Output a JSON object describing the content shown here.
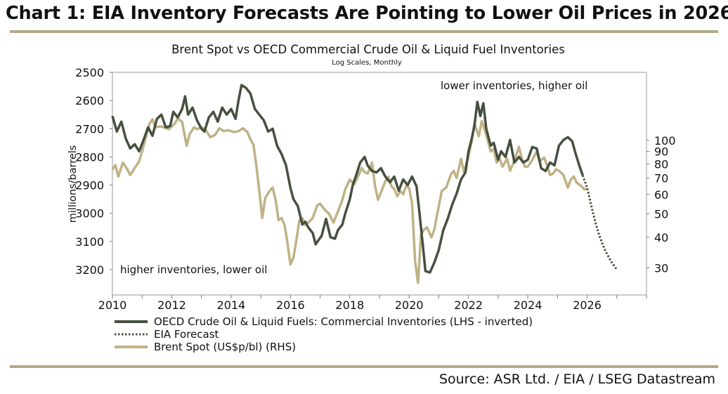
{
  "headline": "Chart 1: EIA Inventory Forecasts Are Pointing to Lower Oil Prices in 2026",
  "source": "Source: ASR Ltd. / EIA / LSEG Datastream",
  "chart_data": {
    "type": "line",
    "title": "Brent Spot  vs OECD Commercial Crude Oil & Liquid Fuel Inventories",
    "subtitle": "Log Scales, Monthly",
    "ylabel": "millions/barrels",
    "xlim": [
      2010,
      2028
    ],
    "x_ticks": [
      "2010",
      "2012",
      "2014",
      "2016",
      "2018",
      "2020",
      "2022",
      "2024",
      "2026"
    ],
    "ylim_left": [
      2500,
      3240
    ],
    "left_inverted": true,
    "left_ticks": [
      "2500",
      "2600",
      "2700",
      "2800",
      "2900",
      "3000",
      "3100",
      "3200"
    ],
    "right_log_scale": true,
    "ylim_right": [
      26.5,
      190
    ],
    "right_ticks": [
      "100",
      "90",
      "80",
      "70",
      "60",
      "50",
      "40",
      "30"
    ],
    "annotations": [
      "lower inventories, higher oil",
      "higher inventories, lower oil"
    ],
    "legend_position": "bottom-left",
    "colors": {
      "inventories": "#46503f",
      "forecast": "#46503f",
      "brent": "#bfb286",
      "rule": "#b5a985"
    },
    "series": [
      {
        "name": "OECD Crude Oil & Liquid Fuels: Commercial Inventories (LHS - inverted)",
        "axis": "left",
        "style": "solid",
        "points": [
          [
            2010.0,
            2655
          ],
          [
            2010.15,
            2710
          ],
          [
            2010.3,
            2675
          ],
          [
            2010.45,
            2735
          ],
          [
            2010.6,
            2770
          ],
          [
            2010.75,
            2755
          ],
          [
            2010.9,
            2780
          ],
          [
            2011.05,
            2740
          ],
          [
            2011.2,
            2695
          ],
          [
            2011.35,
            2725
          ],
          [
            2011.5,
            2665
          ],
          [
            2011.65,
            2650
          ],
          [
            2011.8,
            2695
          ],
          [
            2011.95,
            2690
          ],
          [
            2012.05,
            2640
          ],
          [
            2012.2,
            2660
          ],
          [
            2012.35,
            2630
          ],
          [
            2012.45,
            2585
          ],
          [
            2012.55,
            2650
          ],
          [
            2012.7,
            2625
          ],
          [
            2012.85,
            2670
          ],
          [
            2013.0,
            2700
          ],
          [
            2013.1,
            2710
          ],
          [
            2013.25,
            2660
          ],
          [
            2013.4,
            2640
          ],
          [
            2013.55,
            2675
          ],
          [
            2013.7,
            2625
          ],
          [
            2013.85,
            2650
          ],
          [
            2014.0,
            2630
          ],
          [
            2014.15,
            2665
          ],
          [
            2014.25,
            2600
          ],
          [
            2014.35,
            2545
          ],
          [
            2014.5,
            2555
          ],
          [
            2014.65,
            2575
          ],
          [
            2014.8,
            2630
          ],
          [
            2014.95,
            2650
          ],
          [
            2015.1,
            2670
          ],
          [
            2015.25,
            2710
          ],
          [
            2015.4,
            2700
          ],
          [
            2015.55,
            2760
          ],
          [
            2015.7,
            2790
          ],
          [
            2015.85,
            2830
          ],
          [
            2016.0,
            2910
          ],
          [
            2016.1,
            2950
          ],
          [
            2016.25,
            2975
          ],
          [
            2016.4,
            3040
          ],
          [
            2016.5,
            3030
          ],
          [
            2016.6,
            3050
          ],
          [
            2016.75,
            3070
          ],
          [
            2016.85,
            3110
          ],
          [
            2016.95,
            3095
          ],
          [
            2017.05,
            3080
          ],
          [
            2017.2,
            3020
          ],
          [
            2017.35,
            3085
          ],
          [
            2017.5,
            3090
          ],
          [
            2017.6,
            3060
          ],
          [
            2017.75,
            3040
          ],
          [
            2017.85,
            3000
          ],
          [
            2018.0,
            2950
          ],
          [
            2018.1,
            2900
          ],
          [
            2018.2,
            2870
          ],
          [
            2018.35,
            2820
          ],
          [
            2018.5,
            2800
          ],
          [
            2018.6,
            2830
          ],
          [
            2018.75,
            2850
          ],
          [
            2018.9,
            2855
          ],
          [
            2019.05,
            2840
          ],
          [
            2019.2,
            2870
          ],
          [
            2019.35,
            2890
          ],
          [
            2019.5,
            2870
          ],
          [
            2019.65,
            2920
          ],
          [
            2019.8,
            2880
          ],
          [
            2019.95,
            2900
          ],
          [
            2020.1,
            2870
          ],
          [
            2020.25,
            2905
          ],
          [
            2020.35,
            3000
          ],
          [
            2020.45,
            3100
          ],
          [
            2020.55,
            3205
          ],
          [
            2020.7,
            3210
          ],
          [
            2020.85,
            3175
          ],
          [
            2021.0,
            3130
          ],
          [
            2021.15,
            3060
          ],
          [
            2021.3,
            3020
          ],
          [
            2021.45,
            2970
          ],
          [
            2021.6,
            2930
          ],
          [
            2021.75,
            2880
          ],
          [
            2021.9,
            2855
          ],
          [
            2022.0,
            2780
          ],
          [
            2022.1,
            2740
          ],
          [
            2022.2,
            2690
          ],
          [
            2022.3,
            2605
          ],
          [
            2022.4,
            2655
          ],
          [
            2022.5,
            2610
          ],
          [
            2022.6,
            2700
          ],
          [
            2022.75,
            2760
          ],
          [
            2022.85,
            2750
          ],
          [
            2023.0,
            2810
          ],
          [
            2023.1,
            2780
          ],
          [
            2023.25,
            2800
          ],
          [
            2023.4,
            2740
          ],
          [
            2023.55,
            2820
          ],
          [
            2023.7,
            2800
          ],
          [
            2023.85,
            2820
          ],
          [
            2024.0,
            2810
          ],
          [
            2024.15,
            2765
          ],
          [
            2024.3,
            2770
          ],
          [
            2024.45,
            2840
          ],
          [
            2024.6,
            2850
          ],
          [
            2024.75,
            2820
          ],
          [
            2024.9,
            2830
          ],
          [
            2025.05,
            2760
          ],
          [
            2025.2,
            2740
          ],
          [
            2025.35,
            2730
          ],
          [
            2025.5,
            2745
          ],
          [
            2025.6,
            2785
          ],
          [
            2025.75,
            2835
          ],
          [
            2025.85,
            2865
          ]
        ]
      },
      {
        "name": "EIA Forecast",
        "axis": "left",
        "style": "dotted",
        "points": [
          [
            2025.85,
            2865
          ],
          [
            2026.0,
            2910
          ],
          [
            2026.1,
            2955
          ],
          [
            2026.2,
            3000
          ],
          [
            2026.3,
            3040
          ],
          [
            2026.4,
            3075
          ],
          [
            2026.5,
            3105
          ],
          [
            2026.6,
            3130
          ],
          [
            2026.7,
            3150
          ],
          [
            2026.8,
            3170
          ],
          [
            2026.9,
            3185
          ],
          [
            2027.0,
            3200
          ]
        ]
      },
      {
        "name": "Brent Spot (US$p/bl) (RHS)",
        "axis": "right",
        "points": [
          [
            2010.0,
            76
          ],
          [
            2010.1,
            79
          ],
          [
            2010.2,
            71
          ],
          [
            2010.35,
            81
          ],
          [
            2010.5,
            76
          ],
          [
            2010.6,
            72
          ],
          [
            2010.75,
            77
          ],
          [
            2010.9,
            82
          ],
          [
            2011.0,
            90
          ],
          [
            2011.1,
            100
          ],
          [
            2011.25,
            117
          ],
          [
            2011.35,
            122
          ],
          [
            2011.45,
            113
          ],
          [
            2011.6,
            114
          ],
          [
            2011.75,
            113
          ],
          [
            2011.9,
            111
          ],
          [
            2012.1,
            117
          ],
          [
            2012.2,
            123
          ],
          [
            2012.35,
            119
          ],
          [
            2012.5,
            95
          ],
          [
            2012.6,
            106
          ],
          [
            2012.75,
            113
          ],
          [
            2012.85,
            111
          ],
          [
            2013.0,
            113
          ],
          [
            2013.15,
            110
          ],
          [
            2013.3,
            103
          ],
          [
            2013.45,
            105
          ],
          [
            2013.6,
            112
          ],
          [
            2013.75,
            109
          ],
          [
            2013.9,
            110
          ],
          [
            2014.1,
            108
          ],
          [
            2014.25,
            109
          ],
          [
            2014.4,
            112
          ],
          [
            2014.55,
            108
          ],
          [
            2014.65,
            101
          ],
          [
            2014.75,
            96
          ],
          [
            2014.85,
            79
          ],
          [
            2014.95,
            62
          ],
          [
            2015.05,
            48
          ],
          [
            2015.15,
            58
          ],
          [
            2015.3,
            62
          ],
          [
            2015.4,
            64
          ],
          [
            2015.5,
            57
          ],
          [
            2015.6,
            47
          ],
          [
            2015.7,
            48
          ],
          [
            2015.8,
            45
          ],
          [
            2015.9,
            38
          ],
          [
            2016.0,
            31
          ],
          [
            2016.1,
            33
          ],
          [
            2016.2,
            39
          ],
          [
            2016.3,
            47
          ],
          [
            2016.4,
            48
          ],
          [
            2016.5,
            45
          ],
          [
            2016.6,
            46
          ],
          [
            2016.75,
            48
          ],
          [
            2016.9,
            54
          ],
          [
            2017.0,
            55
          ],
          [
            2017.15,
            52
          ],
          [
            2017.3,
            50
          ],
          [
            2017.45,
            46
          ],
          [
            2017.6,
            51
          ],
          [
            2017.75,
            57
          ],
          [
            2017.85,
            63
          ],
          [
            2018.0,
            69
          ],
          [
            2018.15,
            66
          ],
          [
            2018.3,
            72
          ],
          [
            2018.4,
            77
          ],
          [
            2018.5,
            74
          ],
          [
            2018.6,
            73
          ],
          [
            2018.75,
            81
          ],
          [
            2018.85,
            65
          ],
          [
            2018.95,
            57
          ],
          [
            2019.05,
            61
          ],
          [
            2019.2,
            68
          ],
          [
            2019.3,
            71
          ],
          [
            2019.4,
            65
          ],
          [
            2019.5,
            63
          ],
          [
            2019.6,
            59
          ],
          [
            2019.7,
            62
          ],
          [
            2019.8,
            60
          ],
          [
            2019.9,
            65
          ],
          [
            2020.0,
            64
          ],
          [
            2020.1,
            55
          ],
          [
            2020.2,
            32
          ],
          [
            2020.3,
            26
          ],
          [
            2020.4,
            41
          ],
          [
            2020.5,
            43
          ],
          [
            2020.6,
            44
          ],
          [
            2020.75,
            40
          ],
          [
            2020.85,
            43
          ],
          [
            2020.95,
            50
          ],
          [
            2021.1,
            62
          ],
          [
            2021.25,
            64
          ],
          [
            2021.4,
            72
          ],
          [
            2021.5,
            75
          ],
          [
            2021.6,
            70
          ],
          [
            2021.75,
            84
          ],
          [
            2021.85,
            74
          ],
          [
            2022.0,
            86
          ],
          [
            2022.1,
            98
          ],
          [
            2022.2,
            117
          ],
          [
            2022.35,
            104
          ],
          [
            2022.45,
            120
          ],
          [
            2022.55,
            110
          ],
          [
            2022.65,
            100
          ],
          [
            2022.75,
            90
          ],
          [
            2022.85,
            92
          ],
          [
            2022.95,
            81
          ],
          [
            2023.05,
            84
          ],
          [
            2023.15,
            78
          ],
          [
            2023.3,
            84
          ],
          [
            2023.4,
            75
          ],
          [
            2023.5,
            80
          ],
          [
            2023.6,
            86
          ],
          [
            2023.7,
            94
          ],
          [
            2023.8,
            84
          ],
          [
            2023.9,
            78
          ],
          [
            2024.0,
            78
          ],
          [
            2024.15,
            83
          ],
          [
            2024.3,
            90
          ],
          [
            2024.4,
            82
          ],
          [
            2024.55,
            85
          ],
          [
            2024.65,
            79
          ],
          [
            2024.75,
            72
          ],
          [
            2024.85,
            73
          ],
          [
            2024.95,
            76
          ],
          [
            2025.05,
            75
          ],
          [
            2025.2,
            72
          ],
          [
            2025.35,
            64
          ],
          [
            2025.45,
            69
          ],
          [
            2025.55,
            71
          ],
          [
            2025.65,
            67
          ],
          [
            2025.8,
            65
          ],
          [
            2025.9,
            63
          ],
          [
            2026.0,
            63
          ]
        ]
      }
    ]
  }
}
